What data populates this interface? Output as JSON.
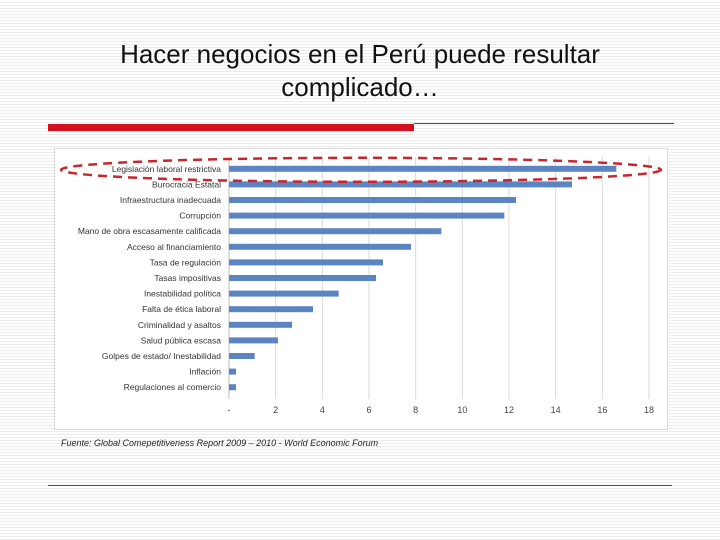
{
  "slide": {
    "title": "Hacer negocios en el Perú puede resultar complicado…",
    "source": "Fuente: Global Comepetitiveness Report 2009 – 2010 - World Economic Forum",
    "accent_color": "#d4101f"
  },
  "chart_data": {
    "type": "bar",
    "orientation": "horizontal",
    "categories": [
      "Legislación laboral restrictiva",
      "Burocracia Estatal",
      "Infraestructura inadecuada",
      "Corrupción",
      "Mano de obra escasamente calificada",
      "Acceso al financiamiento",
      "Tasa de regulación",
      "Tasas impositivas",
      "Inestabilidad política",
      "Falta de ética laboral",
      "Criminalidad y asaltos",
      "Salud pública escasa",
      "Golpes de estado/ Inestabilidad",
      "Inflación",
      "Regulaciones al comercio"
    ],
    "values": [
      16.6,
      14.7,
      12.3,
      11.8,
      9.1,
      7.8,
      6.6,
      6.3,
      4.7,
      3.6,
      2.7,
      2.1,
      1.1,
      0.3,
      0.3
    ],
    "xlim": [
      0,
      18
    ],
    "xticks": [
      "-",
      "2",
      "4",
      "6",
      "8",
      "10",
      "12",
      "14",
      "16",
      "18"
    ],
    "grid": true,
    "bar_color": "#5b85c2",
    "highlight_color": "#c8262e",
    "title": "",
    "xlabel": "",
    "ylabel": ""
  }
}
